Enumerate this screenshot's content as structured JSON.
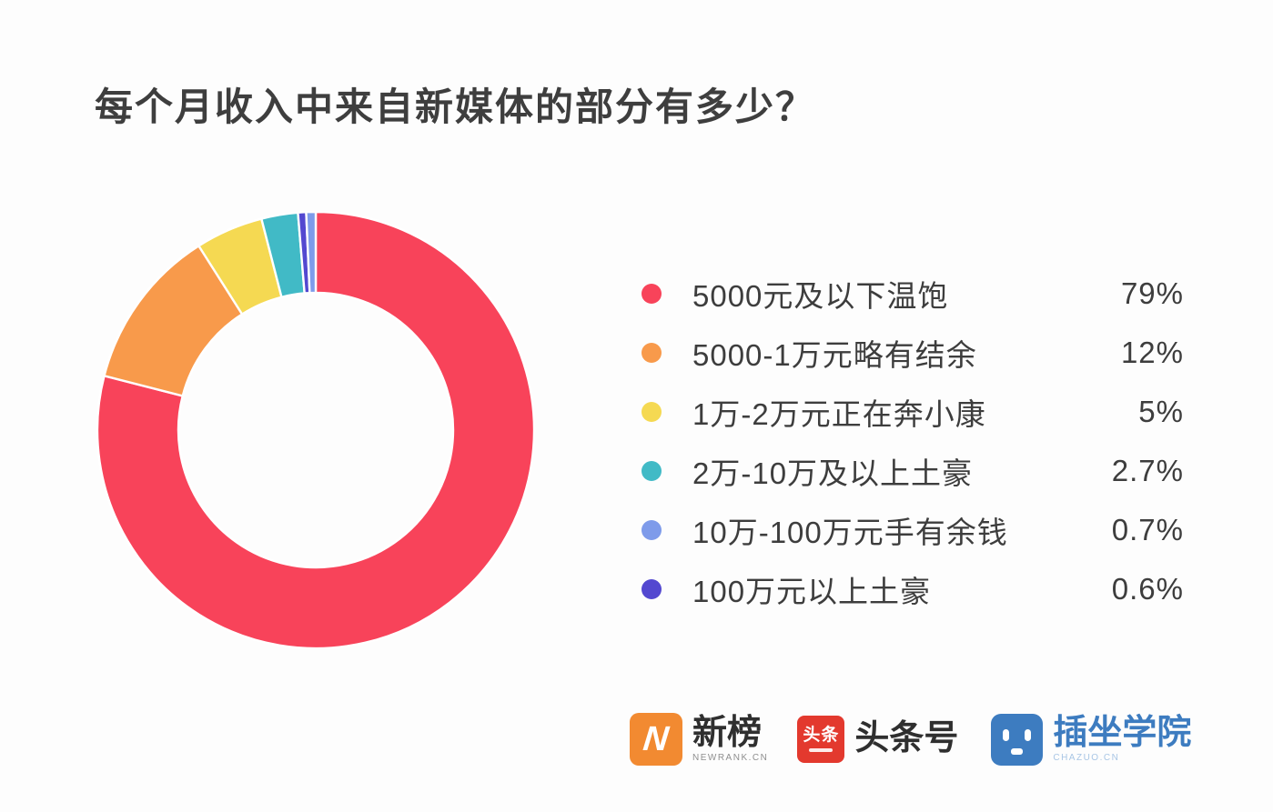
{
  "title": "每个月收入中来自新媒体的部分有多少？",
  "chart_data": {
    "type": "pie",
    "subtype": "donut",
    "title": "每个月收入中来自新媒体的部分有多少？",
    "legend_position": "right",
    "direction": "clockwise",
    "start_angle_deg": 0,
    "inner_radius_ratio": 0.628,
    "gap_color": "#ffffff",
    "slices": [
      {
        "label": "5000元及以下温饱",
        "value": 79,
        "display": "79%",
        "color": "#F8435A"
      },
      {
        "label": "5000-1万元略有结余",
        "value": 12,
        "display": "12%",
        "color": "#F89A4B"
      },
      {
        "label": "1万-2万元正在奔小康",
        "value": 5,
        "display": "5%",
        "color": "#F5D952"
      },
      {
        "label": "2万-10万及以上土豪",
        "value": 2.7,
        "display": "2.7%",
        "color": "#41BAC6"
      },
      {
        "label": "10万-100万元手有余钱",
        "value": 0.7,
        "display": "0.7%",
        "color": "#7E9BEA"
      },
      {
        "label": "100万元以上土豪",
        "value": 0.6,
        "display": "0.6%",
        "color": "#5348D0"
      }
    ],
    "draw_order": [
      0,
      1,
      2,
      3,
      5,
      4
    ]
  },
  "footer_logos": {
    "newrank": {
      "mark_text": "N",
      "title": "新榜",
      "subtitle": "NEWRANK.CN",
      "color": "#F28A31"
    },
    "toutiao": {
      "mark_text": "头条",
      "title": "头条号",
      "color": "#E3392E"
    },
    "chazuo": {
      "title": "插坐学院",
      "subtitle": "CHAZUO.CN",
      "color": "#3D7CC0"
    }
  }
}
